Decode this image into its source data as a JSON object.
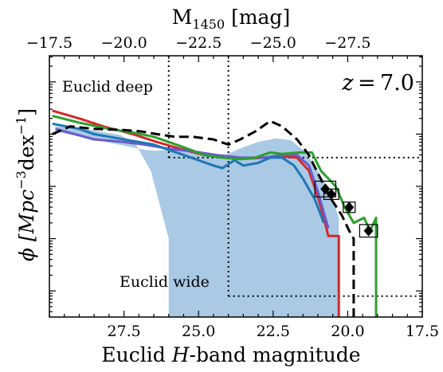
{
  "chart_data": {
    "type": "line",
    "annotation": "z = 7.0",
    "xlabel_parts": [
      "Euclid ",
      "H",
      "-band magnitude"
    ],
    "ylabel_parts": [
      "ϕ [Mpc",
      "−3",
      "dex",
      "−1",
      "]"
    ],
    "top_xlabel_parts": [
      "M",
      "1450",
      " [mag]"
    ],
    "xlim": [
      30,
      17.5
    ],
    "ylim": [
      -10.5,
      -5.5
    ],
    "x_ticks": [
      27.5,
      25.0,
      22.5,
      20.0,
      17.5
    ],
    "x_tick_labels": [
      "27.5",
      "25.0",
      "22.5",
      "20.0",
      "17.5"
    ],
    "top_ticks_m1450": [
      -17.5,
      -20.0,
      -22.5,
      -25.0,
      -27.5
    ],
    "top_tick_labels": [
      "−17.5",
      "−20.0",
      "−22.5",
      "−25.0",
      "−27.5"
    ],
    "top_axis_relation": "H = M1450 + 47.5",
    "y_major_ticks": [
      -10,
      -9,
      -8,
      -7,
      -6
    ],
    "regions": [
      {
        "label": "Euclid deep",
        "mag_limit": 26.0,
        "phi_limit": -7.45
      },
      {
        "label": "Euclid wide",
        "mag_limit": 24.0,
        "phi_limit": -10.1
      }
    ],
    "shaded_band": {
      "color": "#a9c9e4",
      "upper": [
        [
          29.8,
          -6.95
        ],
        [
          28.5,
          -7.1
        ],
        [
          27.5,
          -7.22
        ],
        [
          26.8,
          -7.3
        ],
        [
          26.4,
          -7.32
        ],
        [
          25.8,
          -7.28
        ],
        [
          25,
          -7.32
        ],
        [
          24.2,
          -7.42
        ],
        [
          23.5,
          -7.25
        ],
        [
          23,
          -7.15
        ],
        [
          22.4,
          -7.08
        ],
        [
          21.9,
          -7.12
        ],
        [
          21.4,
          -7.35
        ],
        [
          21,
          -7.7
        ],
        [
          20.6,
          -8.1
        ],
        [
          20.3,
          -8.6
        ]
      ],
      "lower": [
        [
          20.3,
          -10.6
        ],
        [
          26.0,
          -10.6
        ],
        [
          26.0,
          -9.0
        ],
        [
          26.6,
          -7.7
        ],
        [
          27.1,
          -7.2
        ],
        [
          27.6,
          -7.02
        ],
        [
          28.6,
          -6.92
        ],
        [
          29.8,
          -6.85
        ]
      ]
    },
    "series": [
      {
        "color": "#d62728",
        "style": "solid",
        "values": [
          [
            29.9,
            -6.55
          ],
          [
            29,
            -6.7
          ],
          [
            28.2,
            -6.85
          ],
          [
            27.2,
            -7.0
          ],
          [
            26.4,
            -7.15
          ],
          [
            25.5,
            -7.3
          ],
          [
            24.8,
            -7.4
          ],
          [
            24,
            -7.45
          ],
          [
            23.4,
            -7.47
          ],
          [
            22.8,
            -7.45
          ],
          [
            22.3,
            -7.42
          ],
          [
            21.7,
            -7.45
          ],
          [
            21.3,
            -7.7
          ],
          [
            21,
            -8.2
          ],
          [
            20.8,
            -8.6
          ],
          [
            20.65,
            -8.95
          ],
          [
            20.3,
            -8.95
          ],
          [
            20.3,
            -10.6
          ]
        ]
      },
      {
        "color": "#6a5acd",
        "style": "solid",
        "values": [
          [
            29.8,
            -6.9
          ],
          [
            28.5,
            -7.1
          ],
          [
            27.5,
            -7.15
          ],
          [
            26.8,
            -7.2
          ],
          [
            26,
            -7.28
          ],
          [
            25.2,
            -7.33
          ],
          [
            24.4,
            -7.4
          ],
          [
            23.6,
            -7.45
          ],
          [
            22.8,
            -7.45
          ],
          [
            22.2,
            -7.4
          ],
          [
            21.7,
            -7.4
          ],
          [
            21.3,
            -7.6
          ],
          [
            21,
            -8.1
          ],
          [
            20.8,
            -8.5
          ],
          [
            20.65,
            -8.8
          ]
        ]
      },
      {
        "color": "#1f77b4",
        "style": "solid",
        "values": [
          [
            29.9,
            -6.8
          ],
          [
            29,
            -6.9
          ],
          [
            28.5,
            -7.0
          ],
          [
            28,
            -7.05
          ],
          [
            27.5,
            -7.1
          ],
          [
            27,
            -7.15
          ],
          [
            26.5,
            -7.2
          ],
          [
            26,
            -7.3
          ],
          [
            25.5,
            -7.4
          ],
          [
            25,
            -7.5
          ],
          [
            24.5,
            -7.6
          ],
          [
            24.2,
            -7.65
          ],
          [
            23.8,
            -7.5
          ],
          [
            23.5,
            -7.6
          ],
          [
            23,
            -7.55
          ],
          [
            22.6,
            -7.45
          ],
          [
            22.2,
            -7.45
          ],
          [
            21.8,
            -7.6
          ],
          [
            21.5,
            -7.85
          ],
          [
            21.1,
            -8.25
          ],
          [
            20.8,
            -8.7
          ]
        ]
      },
      {
        "color": "#2ca02c",
        "style": "solid",
        "values": [
          [
            29.9,
            -6.65
          ],
          [
            29,
            -6.78
          ],
          [
            28,
            -6.9
          ],
          [
            27.2,
            -6.97
          ],
          [
            26.5,
            -7.05
          ],
          [
            25.5,
            -7.25
          ],
          [
            24.8,
            -7.4
          ],
          [
            24.2,
            -7.45
          ],
          [
            23.6,
            -7.48
          ],
          [
            23.1,
            -7.45
          ],
          [
            22.6,
            -7.35
          ],
          [
            22.2,
            -7.38
          ],
          [
            21.6,
            -7.35
          ],
          [
            21.2,
            -7.35
          ],
          [
            20.9,
            -7.7
          ],
          [
            20.4,
            -8.0
          ],
          [
            20.1,
            -8.4
          ],
          [
            19.8,
            -8.7
          ],
          [
            19.45,
            -8.6
          ],
          [
            19.25,
            -8.85
          ],
          [
            19.05,
            -8.6
          ],
          [
            19.05,
            -10.6
          ]
        ]
      },
      {
        "color": "#000000",
        "style": "dashed",
        "values": [
          [
            29.9,
            -7.0
          ],
          [
            29.3,
            -6.85
          ],
          [
            28.5,
            -6.9
          ],
          [
            27.5,
            -6.92
          ],
          [
            26.9,
            -6.95
          ],
          [
            26.4,
            -7.0
          ],
          [
            25.8,
            -7.05
          ],
          [
            25.2,
            -7.05
          ],
          [
            24.5,
            -7.1
          ],
          [
            24,
            -7.2
          ],
          [
            23.6,
            -7.1
          ],
          [
            23.1,
            -6.95
          ],
          [
            22.6,
            -6.75
          ],
          [
            22.2,
            -6.85
          ],
          [
            21.7,
            -7.1
          ],
          [
            21.3,
            -7.4
          ],
          [
            21,
            -7.75
          ],
          [
            20.6,
            -8.2
          ],
          [
            20.2,
            -8.55
          ],
          [
            19.95,
            -8.85
          ],
          [
            19.8,
            -9.0
          ],
          [
            19.8,
            -10.6
          ]
        ]
      }
    ],
    "observations": [
      {
        "x": 20.75,
        "y": -8.05,
        "marker": "diamond",
        "box_half_w": 0.35,
        "box_half_h": 0.15
      },
      {
        "x": 20.55,
        "y": -8.15,
        "marker": "diamond",
        "box_half_w": 0.25,
        "box_half_h": 0.1
      },
      {
        "x": 19.95,
        "y": -8.4,
        "marker": "diamond",
        "box_half_w": 0.2,
        "box_half_h": 0.1
      },
      {
        "x": 19.3,
        "y": -8.85,
        "marker": "diamond",
        "box_half_w": 0.3,
        "box_half_h": 0.12
      }
    ]
  }
}
